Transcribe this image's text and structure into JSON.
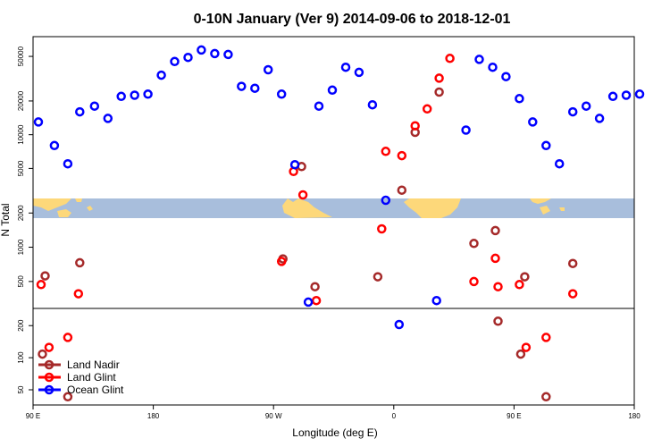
{
  "chart_data": {
    "type": "scatter",
    "title": "0-10N January (Ver 9)   2014-09-06 to 2018-12-01",
    "xlabel": "Longitude (deg E)",
    "ylabel": "N Total",
    "x_ticks": [
      {
        "value": 90,
        "label": "90 E"
      },
      {
        "value": 180,
        "label": "180"
      },
      {
        "value": 270,
        "label": "90 W"
      },
      {
        "value": 360,
        "label": "0"
      },
      {
        "value": 450,
        "label": "90 E"
      },
      {
        "value": 540,
        "label": "180"
      }
    ],
    "xlim": [
      90,
      540
    ],
    "y_scale": "log",
    "upper_panel": {
      "ylim": [
        1800,
        75000
      ],
      "ticks": [
        {
          "value": 2000,
          "label": "2000"
        },
        {
          "value": 5000,
          "label": "5000"
        },
        {
          "value": 10000,
          "label": "10000"
        },
        {
          "value": 20000,
          "label": "20000"
        },
        {
          "value": 50000,
          "label": "50000"
        }
      ]
    },
    "middle_panel": {
      "ylim": [
        290,
        1800
      ],
      "ticks": [
        {
          "value": 500,
          "label": "500"
        },
        {
          "value": 1000,
          "label": "1000"
        }
      ]
    },
    "lower_panel": {
      "ylim": [
        36,
        290
      ],
      "ticks": [
        {
          "value": 50,
          "label": "50"
        },
        {
          "value": 100,
          "label": "100"
        },
        {
          "value": 200,
          "label": "200"
        }
      ]
    },
    "map_band": {
      "ocean_color": "#a8bedc",
      "land_color": "#fdd87a"
    },
    "legend_position": "bottom-left",
    "series": [
      {
        "name": "Land Nadir",
        "color": "#a52a2a",
        "points": [
          {
            "x": 99,
            "y": 560
          },
          {
            "x": 125,
            "y": 730
          },
          {
            "x": 277,
            "y": 790
          },
          {
            "x": 291,
            "y": 5200
          },
          {
            "x": 301,
            "y": 450
          },
          {
            "x": 348,
            "y": 550
          },
          {
            "x": 366,
            "y": 3200
          },
          {
            "x": 376,
            "y": 10500
          },
          {
            "x": 394,
            "y": 24000
          },
          {
            "x": 420,
            "y": 1080
          },
          {
            "x": 436,
            "y": 1400
          },
          {
            "x": 458,
            "y": 550
          },
          {
            "x": 494,
            "y": 720
          },
          {
            "x": 97,
            "y": 108
          },
          {
            "x": 116,
            "y": 43
          },
          {
            "x": 438,
            "y": 220
          },
          {
            "x": 455,
            "y": 108
          },
          {
            "x": 474,
            "y": 43
          }
        ]
      },
      {
        "name": "Land Glint",
        "color": "#ff0000",
        "points": [
          {
            "x": 96,
            "y": 470
          },
          {
            "x": 124,
            "y": 390
          },
          {
            "x": 276,
            "y": 750
          },
          {
            "x": 285,
            "y": 4700
          },
          {
            "x": 292,
            "y": 2900
          },
          {
            "x": 302,
            "y": 340
          },
          {
            "x": 351,
            "y": 1450
          },
          {
            "x": 354,
            "y": 7100
          },
          {
            "x": 366,
            "y": 6500
          },
          {
            "x": 376,
            "y": 12000
          },
          {
            "x": 385,
            "y": 17000
          },
          {
            "x": 394,
            "y": 32000
          },
          {
            "x": 402,
            "y": 48000
          },
          {
            "x": 420,
            "y": 500
          },
          {
            "x": 436,
            "y": 800
          },
          {
            "x": 438,
            "y": 450
          },
          {
            "x": 454,
            "y": 470
          },
          {
            "x": 494,
            "y": 390
          },
          {
            "x": 102,
            "y": 125
          },
          {
            "x": 116,
            "y": 155
          },
          {
            "x": 459,
            "y": 125
          },
          {
            "x": 474,
            "y": 155
          }
        ]
      },
      {
        "name": "Ocean Glint",
        "color": "#0000ff",
        "points": [
          {
            "x": 94,
            "y": 13000
          },
          {
            "x": 106,
            "y": 8000
          },
          {
            "x": 116,
            "y": 5500
          },
          {
            "x": 125,
            "y": 16000
          },
          {
            "x": 136,
            "y": 18000
          },
          {
            "x": 146,
            "y": 14000
          },
          {
            "x": 156,
            "y": 22000
          },
          {
            "x": 166,
            "y": 22500
          },
          {
            "x": 176,
            "y": 23000
          },
          {
            "x": 186,
            "y": 34000
          },
          {
            "x": 196,
            "y": 45000
          },
          {
            "x": 206,
            "y": 49000
          },
          {
            "x": 216,
            "y": 57000
          },
          {
            "x": 226,
            "y": 53000
          },
          {
            "x": 236,
            "y": 52000
          },
          {
            "x": 246,
            "y": 27000
          },
          {
            "x": 256,
            "y": 26000
          },
          {
            "x": 266,
            "y": 38000
          },
          {
            "x": 276,
            "y": 23000
          },
          {
            "x": 286,
            "y": 5400
          },
          {
            "x": 296,
            "y": 330
          },
          {
            "x": 304,
            "y": 18000
          },
          {
            "x": 314,
            "y": 25000
          },
          {
            "x": 324,
            "y": 40000
          },
          {
            "x": 334,
            "y": 36000
          },
          {
            "x": 344,
            "y": 18500
          },
          {
            "x": 354,
            "y": 2600
          },
          {
            "x": 364,
            "y": 205
          },
          {
            "x": 392,
            "y": 340
          },
          {
            "x": 414,
            "y": 11000
          },
          {
            "x": 424,
            "y": 47000
          },
          {
            "x": 434,
            "y": 40000
          },
          {
            "x": 444,
            "y": 33000
          },
          {
            "x": 454,
            "y": 21000
          },
          {
            "x": 464,
            "y": 13000
          },
          {
            "x": 474,
            "y": 8000
          },
          {
            "x": 484,
            "y": 5500
          },
          {
            "x": 494,
            "y": 16000
          },
          {
            "x": 504,
            "y": 18000
          },
          {
            "x": 514,
            "y": 14000
          },
          {
            "x": 524,
            "y": 22000
          },
          {
            "x": 534,
            "y": 22500
          },
          {
            "x": 544,
            "y": 23000
          }
        ]
      }
    ]
  }
}
